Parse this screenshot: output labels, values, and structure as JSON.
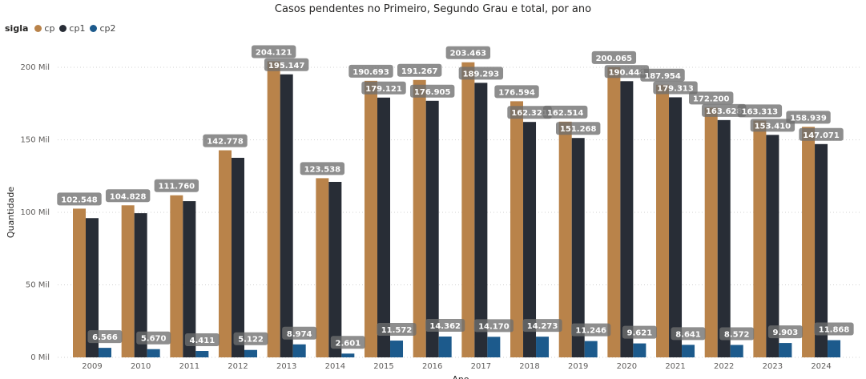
{
  "chart_data": {
    "type": "bar",
    "title": "Casos pendentes no Primeiro, Segundo Grau e total, por ano",
    "xlabel": "Ano",
    "ylabel": "Quantidade",
    "legend_title": "sigla",
    "legend_position": "top-left",
    "ylim": [
      0,
      210000
    ],
    "yticks": [
      {
        "v": 0,
        "label": "0 Mil"
      },
      {
        "v": 50000,
        "label": "50 Mil"
      },
      {
        "v": 100000,
        "label": "100 Mil"
      },
      {
        "v": 150000,
        "label": "150 Mil"
      },
      {
        "v": 200000,
        "label": "200 Mil"
      }
    ],
    "grid": true,
    "categories": [
      "2009",
      "2010",
      "2011",
      "2012",
      "2013",
      "2014",
      "2015",
      "2016",
      "2017",
      "2018",
      "2019",
      "2020",
      "2021",
      "2022",
      "2023",
      "2024"
    ],
    "series": [
      {
        "name": "cp",
        "color": "#B9834A",
        "values": [
          102548,
          104828,
          111760,
          142778,
          204121,
          123538,
          190693,
          191267,
          203463,
          176594,
          162514,
          200065,
          187954,
          172200,
          163313,
          158939
        ],
        "labels": [
          "102.548",
          "104.828",
          "111.760",
          "142.778",
          "204.121",
          "123.538",
          "190.693",
          "191.267",
          "203.463",
          "176.594",
          "162.514",
          "200.065",
          "187.954",
          "172.200",
          "163.313",
          "158.939"
        ]
      },
      {
        "name": "cp1",
        "color": "#282D36",
        "values": [
          96000,
          99400,
          107700,
          137600,
          195147,
          121000,
          179121,
          176905,
          189293,
          162321,
          151268,
          190444,
          179313,
          163628,
          153410,
          147071
        ],
        "labels": [
          null,
          null,
          null,
          null,
          "195.147",
          null,
          "179.121",
          "176.905",
          "189.293",
          "162.321",
          "151.268",
          "190.444",
          "179.313",
          "163.628",
          "153.410",
          "147.071"
        ]
      },
      {
        "name": "cp2",
        "color": "#1C5A8C",
        "values": [
          6566,
          5670,
          4411,
          5122,
          8974,
          2601,
          11572,
          14362,
          14170,
          14273,
          11246,
          9621,
          8641,
          8572,
          9903,
          11868
        ],
        "labels": [
          "6.566",
          "5.670",
          "4.411",
          "5.122",
          "8.974",
          "2.601",
          "11.572",
          "14.362",
          "14.170",
          "14.273",
          "11.246",
          "9.621",
          "8.641",
          "8.572",
          "9.903",
          "11.868"
        ]
      }
    ]
  }
}
